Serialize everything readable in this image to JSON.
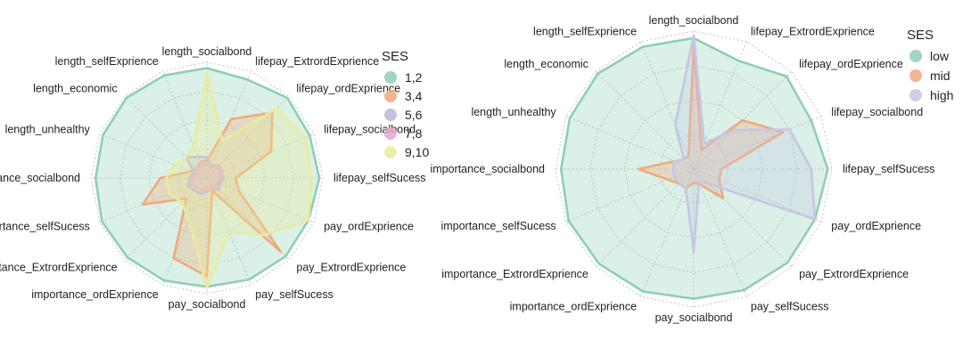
{
  "axis_labels": [
    "length_socialbond",
    "lifepay_ExtrordExprience",
    "lifepay_ordExprience",
    "lifepay_socialbond",
    "lifepay_selfSucess",
    "pay_ordExprience",
    "pay_ExtrordExprience",
    "pay_selfSucess",
    "pay_socialbond",
    "importance_ordExprience",
    "importance_ExtrordExprience",
    "importance_selfSucess",
    "importance_socialbond",
    "length_unhealthy",
    "length_economic",
    "length_selfExprience"
  ],
  "chart_data": [
    {
      "type": "radar",
      "rlim": [
        0,
        1
      ],
      "grid": true,
      "legend": {
        "title": "SES",
        "placement": "right"
      },
      "series": [
        {
          "name": "1,2",
          "color": "#8fcfb1",
          "values": [
            0.95,
            0.92,
            0.98,
            0.96,
            0.97,
            0.95,
            0.96,
            0.95,
            0.94,
            0.96,
            0.97,
            0.98,
            0.96,
            0.97,
            0.98,
            0.96
          ]
        },
        {
          "name": "3,4",
          "color": "#f0a97c",
          "values": [
            0.15,
            0.55,
            0.8,
            0.6,
            0.25,
            0.3,
            0.9,
            0.12,
            0.85,
            0.75,
            0.25,
            0.6,
            0.4,
            0.15,
            0.12,
            0.15
          ]
        },
        {
          "name": "5,6",
          "color": "#b8b8d8",
          "values": [
            0.18,
            0.1,
            0.15,
            0.12,
            0.15,
            0.12,
            0.15,
            0.1,
            0.12,
            0.15,
            0.15,
            0.18,
            0.15,
            0.12,
            0.25,
            0.2
          ]
        },
        {
          "name": "7,8",
          "color": "#e9a8cc",
          "values": [
            0.12,
            0.12,
            0.15,
            0.15,
            0.12,
            0.1,
            0.12,
            0.1,
            0.1,
            0.12,
            0.12,
            0.15,
            0.12,
            0.1,
            0.12,
            0.12
          ]
        },
        {
          "name": "9,10",
          "color": "#e9ec9c",
          "values": [
            0.9,
            0.35,
            0.85,
            0.92,
            0.9,
            0.95,
            0.7,
            0.5,
            0.95,
            0.4,
            0.3,
            0.35,
            0.35,
            0.3,
            0.25,
            0.3
          ]
        }
      ]
    },
    {
      "type": "radar",
      "rlim": [
        0,
        1
      ],
      "grid": true,
      "legend": {
        "title": "SES",
        "placement": "right"
      },
      "series": [
        {
          "name": "low",
          "color": "#8fcfb1",
          "values": [
            0.95,
            0.85,
            0.95,
            0.92,
            0.97,
            0.95,
            0.96,
            0.95,
            0.94,
            0.96,
            0.97,
            0.98,
            0.96,
            0.97,
            0.98,
            0.96
          ]
        },
        {
          "name": "mid",
          "color": "#f0a97c",
          "values": [
            0.9,
            0.15,
            0.5,
            0.7,
            0.2,
            0.2,
            0.3,
            0.12,
            0.1,
            0.15,
            0.15,
            0.2,
            0.4,
            0.15,
            0.1,
            0.1
          ]
        },
        {
          "name": "high",
          "color": "#c6c6e4",
          "values": [
            0.97,
            0.2,
            0.4,
            0.75,
            0.85,
            0.95,
            0.15,
            0.1,
            0.6,
            0.15,
            0.15,
            0.15,
            0.15,
            0.15,
            0.1,
            0.35
          ]
        }
      ]
    }
  ]
}
